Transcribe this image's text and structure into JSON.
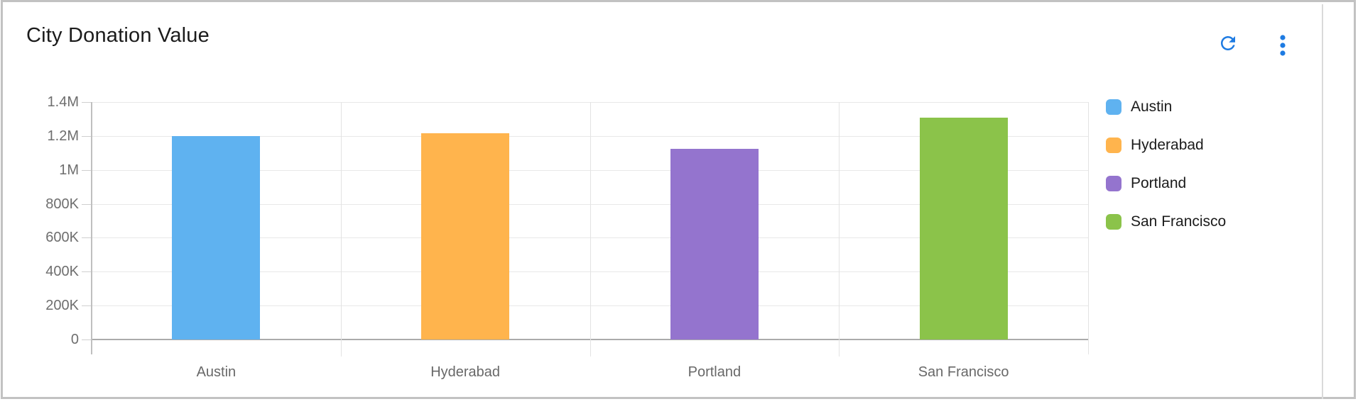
{
  "widget": {
    "title": "City Donation Value",
    "icons": {
      "refresh": "refresh-circular-arrow",
      "menu": "kebab-vertical-dots",
      "color": "#1E7BE2"
    }
  },
  "chart_data": {
    "type": "bar",
    "title": "City Donation Value",
    "categories": [
      "Austin",
      "Hyderabad",
      "Portland",
      "San Francisco"
    ],
    "values": [
      1200000,
      1215000,
      1125000,
      1310000
    ],
    "colors": [
      "#5FB2F0",
      "#FFB44D",
      "#9474CE",
      "#8BC34A"
    ],
    "xlabel": "",
    "ylabel": "",
    "ylim": [
      0,
      1400000
    ],
    "grid": true,
    "yticks": [
      {
        "value": 0,
        "label": "0"
      },
      {
        "value": 200000,
        "label": "200K"
      },
      {
        "value": 400000,
        "label": "400K"
      },
      {
        "value": 600000,
        "label": "600K"
      },
      {
        "value": 800000,
        "label": "800K"
      },
      {
        "value": 1000000,
        "label": "1M"
      },
      {
        "value": 1200000,
        "label": "1.2M"
      },
      {
        "value": 1400000,
        "label": "1.4M"
      }
    ],
    "legend": {
      "position": "right",
      "items": [
        "Austin",
        "Hyderabad",
        "Portland",
        "San Francisco"
      ]
    }
  }
}
